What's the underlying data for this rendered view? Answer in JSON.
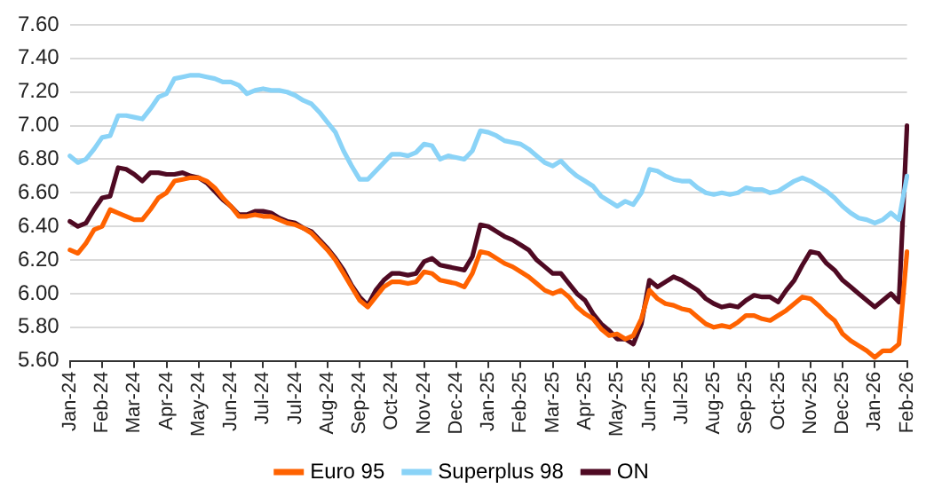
{
  "chart_data": {
    "type": "line",
    "categories": [
      "Jan-24",
      null,
      null,
      null,
      "Feb-24",
      null,
      null,
      null,
      "Mar-24",
      null,
      null,
      null,
      "Apr-24",
      null,
      null,
      null,
      "May-24",
      null,
      null,
      null,
      "Jun-24",
      null,
      null,
      null,
      "Jul-24",
      null,
      null,
      null,
      "Jul-24",
      null,
      null,
      null,
      "Aug-24",
      null,
      null,
      null,
      "Sep-24",
      null,
      null,
      null,
      "Oct-24",
      null,
      null,
      null,
      "Nov-24",
      null,
      null,
      null,
      "Dec-24",
      null,
      null,
      null,
      "Jan-25",
      null,
      null,
      null,
      "Feb-25",
      null,
      null,
      null,
      "Mar-25",
      null,
      null,
      null,
      "Apr-25",
      null,
      null,
      null,
      "May-25",
      null,
      null,
      null,
      "Jun-25",
      null,
      null,
      null,
      "Jul-25",
      null,
      null,
      null,
      "Aug-25",
      null,
      null,
      null,
      "Sep-25",
      null,
      null,
      null,
      "Oct-25",
      null,
      null,
      null,
      "Nov-25",
      null,
      null,
      null,
      "Dec-25",
      null,
      null,
      null,
      "Jan-26",
      null,
      null,
      null,
      "Feb-26"
    ],
    "series": [
      {
        "name": "Euro 95",
        "color": "#ff6200",
        "values": [
          6.26,
          6.24,
          6.3,
          6.38,
          6.4,
          6.5,
          6.48,
          6.46,
          6.44,
          6.44,
          6.5,
          6.57,
          6.6,
          6.67,
          6.68,
          6.69,
          6.69,
          6.67,
          6.63,
          6.57,
          6.52,
          6.46,
          6.46,
          6.47,
          6.46,
          6.46,
          6.44,
          6.42,
          6.41,
          6.39,
          6.36,
          6.31,
          6.26,
          6.2,
          6.12,
          6.04,
          5.96,
          5.92,
          5.98,
          6.04,
          6.07,
          6.07,
          6.06,
          6.07,
          6.13,
          6.12,
          6.08,
          6.07,
          6.06,
          6.04,
          6.12,
          6.25,
          6.24,
          6.21,
          6.18,
          6.16,
          6.13,
          6.1,
          6.06,
          6.02,
          6.0,
          6.02,
          5.98,
          5.92,
          5.88,
          5.85,
          5.79,
          5.75,
          5.76,
          5.73,
          5.75,
          5.85,
          6.02,
          5.97,
          5.94,
          5.93,
          5.91,
          5.9,
          5.86,
          5.82,
          5.8,
          5.81,
          5.8,
          5.83,
          5.87,
          5.87,
          5.85,
          5.84,
          5.87,
          5.9,
          5.94,
          5.98,
          5.97,
          5.93,
          5.88,
          5.84,
          5.76,
          5.72,
          5.69,
          5.66,
          5.62,
          5.66,
          5.66,
          5.7,
          6.25
        ]
      },
      {
        "name": "Superplus 98",
        "color": "#8ad3f7",
        "values": [
          6.82,
          6.78,
          6.8,
          6.86,
          6.93,
          6.94,
          7.06,
          7.06,
          7.05,
          7.04,
          7.1,
          7.17,
          7.19,
          7.28,
          7.29,
          7.3,
          7.3,
          7.29,
          7.28,
          7.26,
          7.26,
          7.24,
          7.19,
          7.21,
          7.22,
          7.21,
          7.21,
          7.2,
          7.18,
          7.15,
          7.13,
          7.08,
          7.02,
          6.96,
          6.85,
          6.76,
          6.68,
          6.68,
          6.73,
          6.78,
          6.83,
          6.83,
          6.82,
          6.84,
          6.89,
          6.88,
          6.8,
          6.82,
          6.81,
          6.8,
          6.85,
          6.97,
          6.96,
          6.94,
          6.91,
          6.9,
          6.89,
          6.86,
          6.82,
          6.78,
          6.76,
          6.79,
          6.74,
          6.7,
          6.67,
          6.64,
          6.58,
          6.55,
          6.52,
          6.55,
          6.53,
          6.6,
          6.74,
          6.73,
          6.7,
          6.68,
          6.67,
          6.67,
          6.63,
          6.6,
          6.59,
          6.6,
          6.59,
          6.6,
          6.63,
          6.62,
          6.62,
          6.6,
          6.61,
          6.64,
          6.67,
          6.69,
          6.67,
          6.64,
          6.61,
          6.57,
          6.52,
          6.48,
          6.45,
          6.44,
          6.42,
          6.44,
          6.48,
          6.44,
          6.7
        ]
      },
      {
        "name": "ON",
        "color": "#4f0a23",
        "values": [
          6.43,
          6.4,
          6.42,
          6.5,
          6.57,
          6.58,
          6.75,
          6.74,
          6.71,
          6.67,
          6.72,
          6.72,
          6.71,
          6.71,
          6.72,
          6.7,
          6.69,
          6.66,
          6.61,
          6.56,
          6.52,
          6.47,
          6.47,
          6.49,
          6.49,
          6.48,
          6.45,
          6.43,
          6.42,
          6.39,
          6.37,
          6.32,
          6.27,
          6.21,
          6.14,
          6.05,
          5.98,
          5.93,
          6.02,
          6.08,
          6.12,
          6.12,
          6.11,
          6.12,
          6.19,
          6.21,
          6.17,
          6.16,
          6.15,
          6.14,
          6.22,
          6.41,
          6.4,
          6.37,
          6.34,
          6.32,
          6.29,
          6.26,
          6.2,
          6.16,
          6.12,
          6.12,
          6.06,
          6.0,
          5.96,
          5.88,
          5.82,
          5.78,
          5.73,
          5.73,
          5.7,
          5.82,
          6.08,
          6.04,
          6.07,
          6.1,
          6.08,
          6.05,
          6.02,
          5.97,
          5.94,
          5.92,
          5.93,
          5.92,
          5.96,
          5.99,
          5.98,
          5.98,
          5.95,
          6.02,
          6.08,
          6.17,
          6.25,
          6.24,
          6.18,
          6.14,
          6.08,
          6.04,
          6.0,
          5.96,
          5.92,
          5.96,
          6.0,
          5.95,
          7.0
        ]
      }
    ],
    "ylim": [
      5.6,
      7.6
    ],
    "yticks": [
      {
        "value": 5.6,
        "label": "5.60"
      },
      {
        "value": 5.8,
        "label": "5.80"
      },
      {
        "value": 6.0,
        "label": "6.00"
      },
      {
        "value": 6.2,
        "label": "6.20"
      },
      {
        "value": 6.4,
        "label": "6.40"
      },
      {
        "value": 6.6,
        "label": "6.60"
      },
      {
        "value": 6.8,
        "label": "6.80"
      },
      {
        "value": 7.0,
        "label": "7.00"
      },
      {
        "value": 7.2,
        "label": "7.20"
      },
      {
        "value": 7.4,
        "label": "7.40"
      },
      {
        "value": 7.6,
        "label": "7.60"
      }
    ],
    "grid": "y",
    "legend": "bottom",
    "marker": "none",
    "line_style": "solid"
  }
}
